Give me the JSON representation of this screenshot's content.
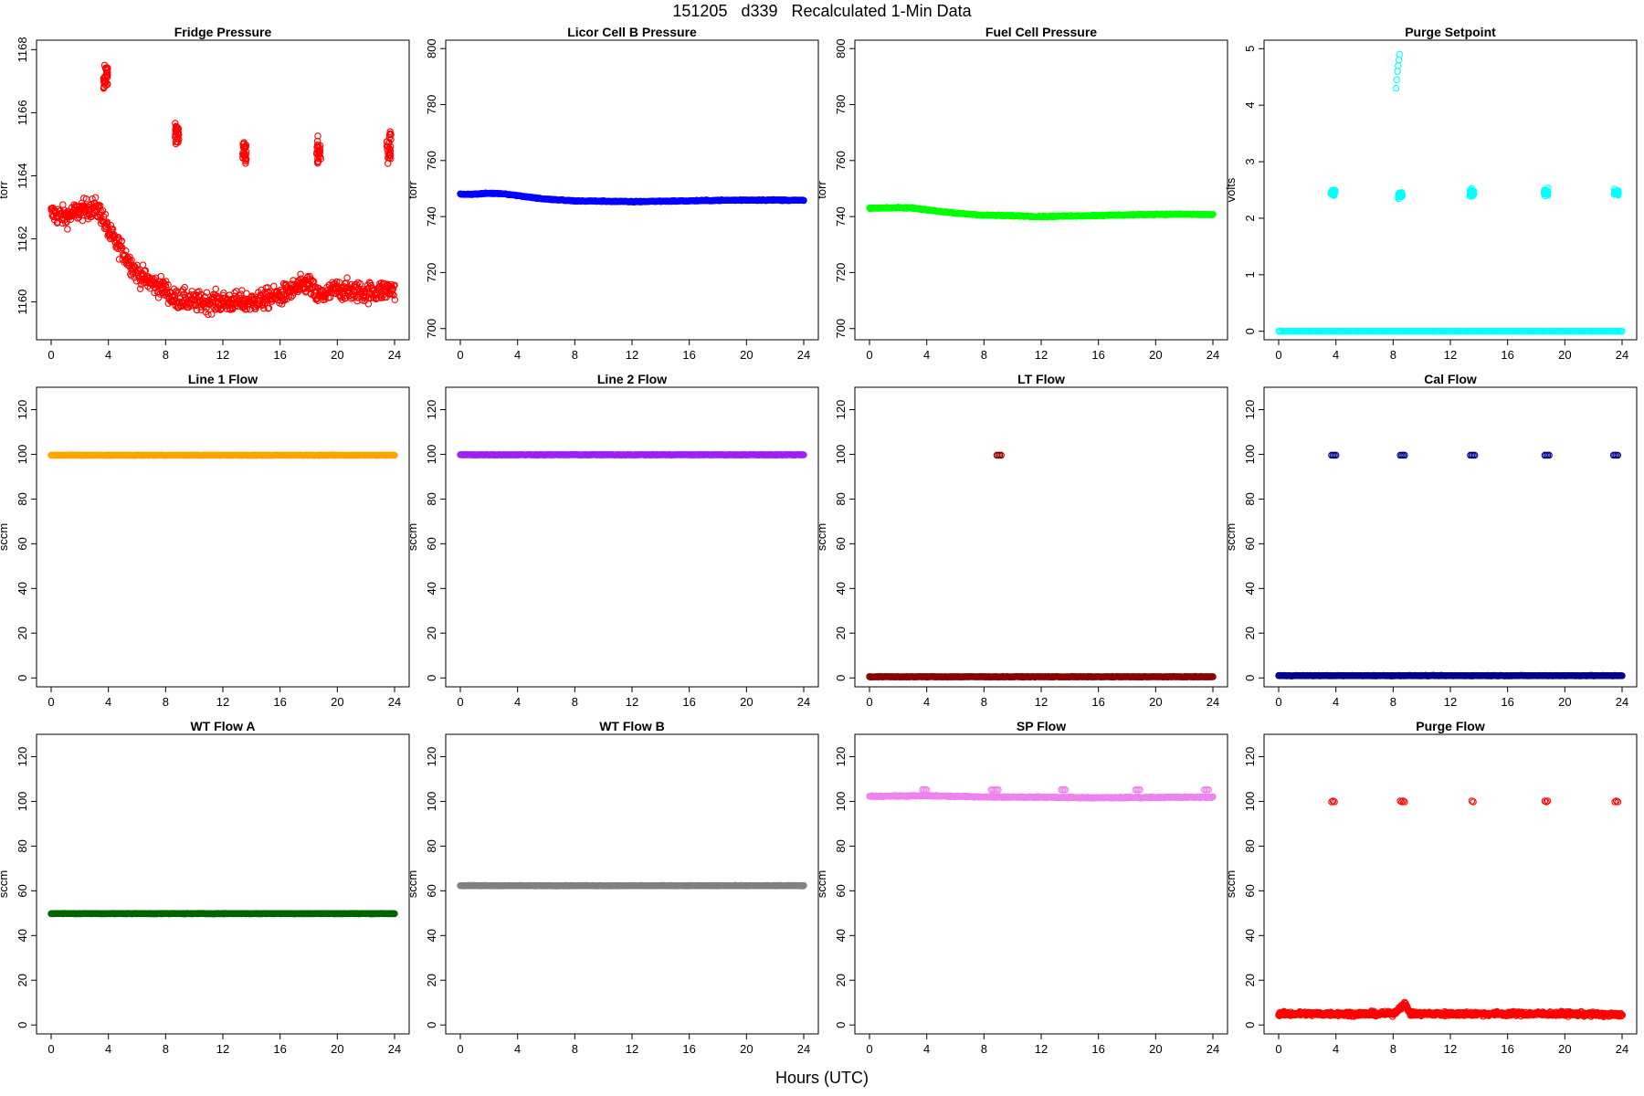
{
  "title": "151205   d339   Recalculated 1-Min Data",
  "xlabel": "Hours (UTC)",
  "chart_data": [
    {
      "type": "scatter",
      "title": "Fridge Pressure",
      "ylabel": "torr",
      "xlim": [
        0,
        24
      ],
      "xticks": [
        0,
        4,
        8,
        12,
        16,
        20,
        24
      ],
      "ylim": [
        1158.8,
        1168.3
      ],
      "yticks": [
        1160,
        1162,
        1164,
        1166,
        1168
      ],
      "color": "#ff0000",
      "series": [
        {
          "x": [
            0,
            1,
            2,
            3,
            3.5,
            4,
            5,
            6,
            7,
            8,
            8.5,
            9,
            10,
            12,
            14,
            16,
            17,
            18,
            18.5,
            19,
            20,
            22,
            24
          ],
          "y": [
            1162.8,
            1162.7,
            1162.9,
            1163.0,
            1162.8,
            1162.2,
            1161.6,
            1160.9,
            1160.6,
            1160.4,
            1160.1,
            1160.1,
            1160.0,
            1160.0,
            1160.0,
            1160.2,
            1160.4,
            1160.6,
            1160.2,
            1160.2,
            1160.4,
            1160.3,
            1160.4
          ],
          "spread": 0.55
        },
        {
          "x": [
            3.8,
            8.8,
            13.5,
            18.7,
            23.6
          ],
          "y": [
            1167.1,
            1165.3,
            1164.8,
            1164.8,
            1164.9
          ],
          "spread": 0.5,
          "kind": "burst"
        }
      ]
    },
    {
      "type": "scatter",
      "title": "Licor Cell B Pressure",
      "ylabel": "torr",
      "xlim": [
        0,
        24
      ],
      "xticks": [
        0,
        4,
        8,
        12,
        16,
        20,
        24
      ],
      "ylim": [
        696,
        803
      ],
      "yticks": [
        700,
        720,
        740,
        760,
        780,
        800
      ],
      "color": "#0000ff",
      "series": [
        {
          "x": [
            0,
            1,
            2,
            3,
            4,
            6,
            8,
            10,
            12,
            14,
            16,
            18,
            20,
            22,
            24
          ],
          "y": [
            748,
            748,
            748.3,
            748.2,
            747.5,
            746.2,
            745.6,
            745.5,
            745.3,
            745.5,
            745.6,
            745.8,
            745.9,
            745.9,
            745.8
          ],
          "spread": 0.3
        }
      ]
    },
    {
      "type": "scatter",
      "title": "Fuel Cell Pressure",
      "ylabel": "torr",
      "xlim": [
        0,
        24
      ],
      "xticks": [
        0,
        4,
        8,
        12,
        16,
        20,
        24
      ],
      "ylim": [
        696,
        803
      ],
      "yticks": [
        700,
        720,
        740,
        760,
        780,
        800
      ],
      "color": "#00ff00",
      "series": [
        {
          "x": [
            0,
            1,
            2,
            3,
            4,
            6,
            8,
            10,
            12,
            14,
            16,
            18,
            20,
            22,
            24
          ],
          "y": [
            743,
            743,
            743.2,
            743.1,
            742.4,
            741.2,
            740.5,
            740.3,
            740.0,
            740.2,
            740.4,
            740.6,
            740.8,
            740.8,
            740.7
          ],
          "spread": 0.3
        }
      ]
    },
    {
      "type": "scatter",
      "title": "Purge Setpoint",
      "ylabel": "volts",
      "xlim": [
        0,
        24
      ],
      "xticks": [
        0,
        4,
        8,
        12,
        16,
        20,
        24
      ],
      "ylim": [
        -0.15,
        5.15
      ],
      "yticks": [
        0,
        1,
        2,
        3,
        4,
        5
      ],
      "color": "#00ffff",
      "series": [
        {
          "x": [
            0,
            24
          ],
          "y": [
            0,
            0
          ],
          "spread": 0
        },
        {
          "x": [
            3.8,
            8.5,
            13.5,
            18.7,
            23.6
          ],
          "y": [
            2.45,
            2.4,
            2.45,
            2.45,
            2.45
          ],
          "spread": 0.07,
          "kind": "burst"
        },
        {
          "x": [
            8.2,
            8.25,
            8.3,
            8.35,
            8.4,
            8.45
          ],
          "y": [
            4.3,
            4.45,
            4.6,
            4.7,
            4.8,
            4.9
          ],
          "spread": 0
        }
      ]
    },
    {
      "type": "scatter",
      "title": "Line 1 Flow",
      "ylabel": "sccm",
      "xlim": [
        0,
        24
      ],
      "xticks": [
        0,
        4,
        8,
        12,
        16,
        20,
        24
      ],
      "ylim": [
        -4,
        130
      ],
      "yticks": [
        0,
        20,
        40,
        60,
        80,
        100,
        120
      ],
      "color": "#ffa500",
      "series": [
        {
          "x": [
            0,
            24
          ],
          "y": [
            99.6,
            99.6
          ],
          "spread": 0.2
        }
      ]
    },
    {
      "type": "scatter",
      "title": "Line 2 Flow",
      "ylabel": "sccm",
      "xlim": [
        0,
        24
      ],
      "xticks": [
        0,
        4,
        8,
        12,
        16,
        20,
        24
      ],
      "ylim": [
        -4,
        130
      ],
      "yticks": [
        0,
        20,
        40,
        60,
        80,
        100,
        120
      ],
      "color": "#a020f0",
      "series": [
        {
          "x": [
            0,
            24
          ],
          "y": [
            99.8,
            99.8
          ],
          "spread": 0.2
        }
      ]
    },
    {
      "type": "scatter",
      "title": "LT Flow",
      "ylabel": "sccm",
      "xlim": [
        0,
        24
      ],
      "xticks": [
        0,
        4,
        8,
        12,
        16,
        20,
        24
      ],
      "ylim": [
        -4,
        130
      ],
      "yticks": [
        0,
        20,
        40,
        60,
        80,
        100,
        120
      ],
      "color": "#8b0000",
      "series": [
        {
          "x": [
            0,
            24
          ],
          "y": [
            0.5,
            0.5
          ],
          "spread": 0.2
        },
        {
          "x": [
            8.9,
            9.0,
            9.1,
            9.2
          ],
          "y": [
            99.6,
            99.6,
            99.6,
            99.6
          ],
          "spread": 0
        }
      ]
    },
    {
      "type": "scatter",
      "title": "Cal Flow",
      "ylabel": "sccm",
      "xlim": [
        0,
        24
      ],
      "xticks": [
        0,
        4,
        8,
        12,
        16,
        20,
        24
      ],
      "ylim": [
        -4,
        130
      ],
      "yticks": [
        0,
        20,
        40,
        60,
        80,
        100,
        120
      ],
      "color": "#00008b",
      "series": [
        {
          "x": [
            0,
            24
          ],
          "y": [
            1.0,
            1.0
          ],
          "spread": 0.2
        },
        {
          "x": [
            3.7,
            3.8,
            3.9,
            4.0,
            8.5,
            8.6,
            8.7,
            8.8,
            13.4,
            13.5,
            13.6,
            13.7,
            18.6,
            18.7,
            18.8,
            18.9,
            23.4,
            23.5,
            23.6,
            23.7
          ],
          "y": [
            99.6,
            99.6,
            99.6,
            99.6,
            99.6,
            99.6,
            99.6,
            99.6,
            99.6,
            99.6,
            99.6,
            99.6,
            99.6,
            99.6,
            99.6,
            99.6,
            99.6,
            99.6,
            99.6,
            99.6
          ],
          "spread": 0
        }
      ]
    },
    {
      "type": "scatter",
      "title": "WT Flow A",
      "ylabel": "sccm",
      "xlim": [
        0,
        24
      ],
      "xticks": [
        0,
        4,
        8,
        12,
        16,
        20,
        24
      ],
      "ylim": [
        -4,
        130
      ],
      "yticks": [
        0,
        20,
        40,
        60,
        80,
        100,
        120
      ],
      "color": "#006400",
      "series": [
        {
          "x": [
            0,
            24
          ],
          "y": [
            49.8,
            49.8
          ],
          "spread": 0.2
        }
      ]
    },
    {
      "type": "scatter",
      "title": "WT Flow B",
      "ylabel": "sccm",
      "xlim": [
        0,
        24
      ],
      "xticks": [
        0,
        4,
        8,
        12,
        16,
        20,
        24
      ],
      "ylim": [
        -4,
        130
      ],
      "yticks": [
        0,
        20,
        40,
        60,
        80,
        100,
        120
      ],
      "color": "#808080",
      "series": [
        {
          "x": [
            0,
            24
          ],
          "y": [
            62.3,
            62.3
          ],
          "spread": 0.2
        }
      ]
    },
    {
      "type": "scatter",
      "title": "SP Flow",
      "ylabel": "sccm",
      "xlim": [
        0,
        24
      ],
      "xticks": [
        0,
        4,
        8,
        12,
        16,
        20,
        24
      ],
      "ylim": [
        -4,
        130
      ],
      "yticks": [
        0,
        20,
        40,
        60,
        80,
        100,
        120
      ],
      "color": "#ee82ee",
      "series": [
        {
          "x": [
            0,
            4,
            8,
            12,
            16,
            20,
            24
          ],
          "y": [
            102.3,
            102.5,
            102.0,
            101.9,
            101.6,
            101.8,
            101.9
          ],
          "spread": 0.4
        },
        {
          "x": [
            3.7,
            3.8,
            3.9,
            4.0,
            8.5,
            8.6,
            8.7,
            8.8,
            8.9,
            9.0,
            13.4,
            13.5,
            13.6,
            13.7,
            18.6,
            18.7,
            18.8,
            18.9,
            23.4,
            23.5,
            23.6,
            23.7
          ],
          "y": [
            105.2,
            105.2,
            105.2,
            105.2,
            105.2,
            105.2,
            105.2,
            105.2,
            105.2,
            105.2,
            105.2,
            105.2,
            105.2,
            105.2,
            105.2,
            105.2,
            105.2,
            105.2,
            105.2,
            105.2,
            105.2,
            105.2
          ],
          "spread": 0
        }
      ]
    },
    {
      "type": "scatter",
      "title": "Purge Flow",
      "ylabel": "sccm",
      "xlim": [
        0,
        24
      ],
      "xticks": [
        0,
        4,
        8,
        12,
        16,
        20,
        24
      ],
      "ylim": [
        -4,
        130
      ],
      "yticks": [
        0,
        20,
        40,
        60,
        80,
        100,
        120
      ],
      "color": "#ff0000",
      "series": [
        {
          "x": [
            0,
            4,
            8,
            8.8,
            9.2,
            12,
            16,
            20,
            24
          ],
          "y": [
            5.0,
            5.0,
            5.0,
            9.5,
            5.0,
            5.0,
            5.0,
            5.0,
            4.5
          ],
          "spread": 1.6
        },
        {
          "x": [
            3.7,
            3.8,
            3.9,
            8.5,
            8.6,
            8.7,
            8.8,
            13.5,
            13.6,
            18.6,
            18.7,
            18.8,
            23.5,
            23.6,
            23.7
          ],
          "y": [
            99.8,
            100.2,
            99.8,
            100.2,
            99.8,
            100.2,
            99.8,
            100.2,
            99.8,
            100.2,
            99.8,
            100.2,
            99.8,
            100.2,
            99.8
          ],
          "spread": 0
        }
      ]
    }
  ]
}
